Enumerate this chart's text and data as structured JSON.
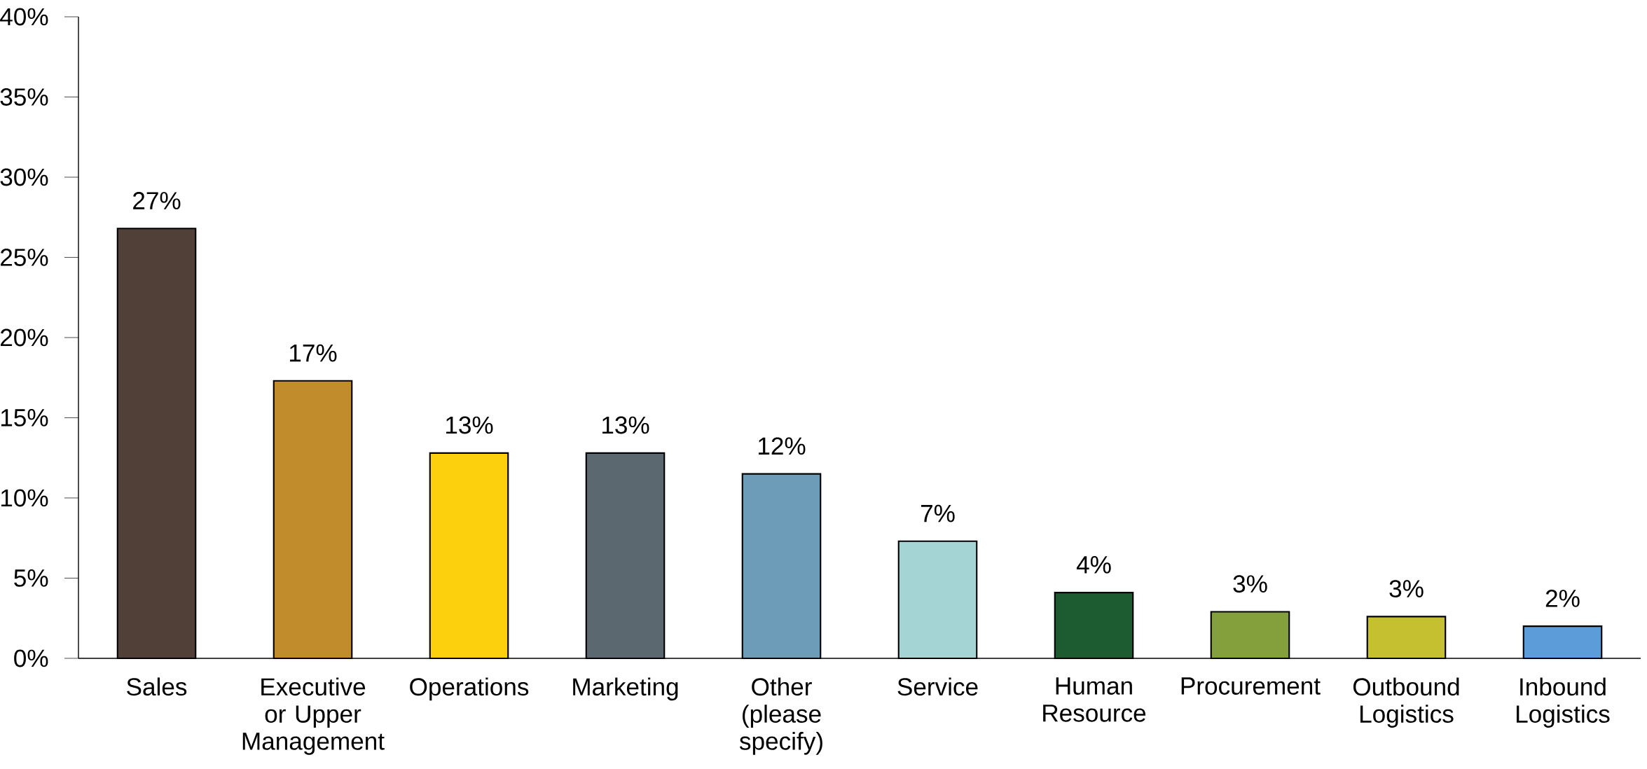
{
  "chart_data": {
    "type": "bar",
    "categories": [
      "Sales",
      "Executive or Upper Management",
      "Operations",
      "Marketing",
      "Other (please specify)",
      "Service",
      "Human Resource",
      "Procurement",
      "Outbound Logistics",
      "Inbound Logistics"
    ],
    "values": [
      26.8,
      17.3,
      12.8,
      12.8,
      11.5,
      7.3,
      4.1,
      2.9,
      2.6,
      2.0
    ],
    "value_labels": [
      "27%",
      "17%",
      "13%",
      "13%",
      "12%",
      "7%",
      "4%",
      "3%",
      "3%",
      "2%"
    ],
    "colors": [
      "#504038",
      "#c08c2c",
      "#fcd00c",
      "#5c6870",
      "#6c9cb8",
      "#a4d4d4",
      "#1c5c30",
      "#84a03c",
      "#c4c030",
      "#5c9cd8"
    ],
    "ylim": [
      0,
      40
    ],
    "yticks": [
      {
        "value": 0,
        "label": "0%"
      },
      {
        "value": 5,
        "label": "5%"
      },
      {
        "value": 10,
        "label": "10%"
      },
      {
        "value": 15,
        "label": "15%"
      },
      {
        "value": 20,
        "label": "20%"
      },
      {
        "value": 25,
        "label": "25%"
      },
      {
        "value": 30,
        "label": "30%"
      },
      {
        "value": 35,
        "label": "35%"
      },
      {
        "value": 40,
        "label": "40%"
      }
    ],
    "grid": false
  }
}
